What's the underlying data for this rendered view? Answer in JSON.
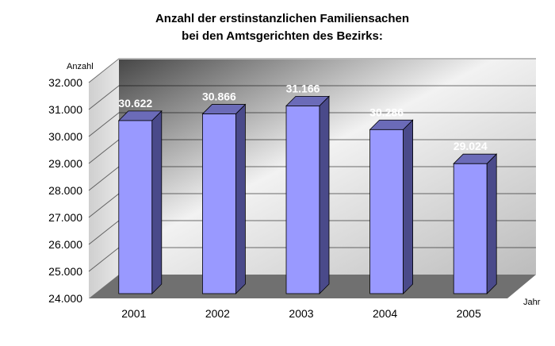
{
  "chart_data": {
    "type": "bar",
    "title_line1": "Anzahl der erstinstanzlichen Familiensachen",
    "title_line2": "bei den Amtsgerichten des Bezirks:",
    "xlabel": "Jahr",
    "ylabel": "Anzahl",
    "categories": [
      "2001",
      "2002",
      "2003",
      "2004",
      "2005"
    ],
    "values": [
      30622,
      30866,
      31166,
      30286,
      29024
    ],
    "value_labels": [
      "30.622",
      "30.866",
      "31.166",
      "30.286",
      "29.024"
    ],
    "ylim": [
      24000,
      32000
    ],
    "y_ticks": [
      "24.000",
      "25.000",
      "26.000",
      "27.000",
      "28.000",
      "29.000",
      "30.000",
      "31.000",
      "32.000"
    ],
    "grid": true,
    "legend": "none",
    "bar_color": "#9999ff"
  }
}
